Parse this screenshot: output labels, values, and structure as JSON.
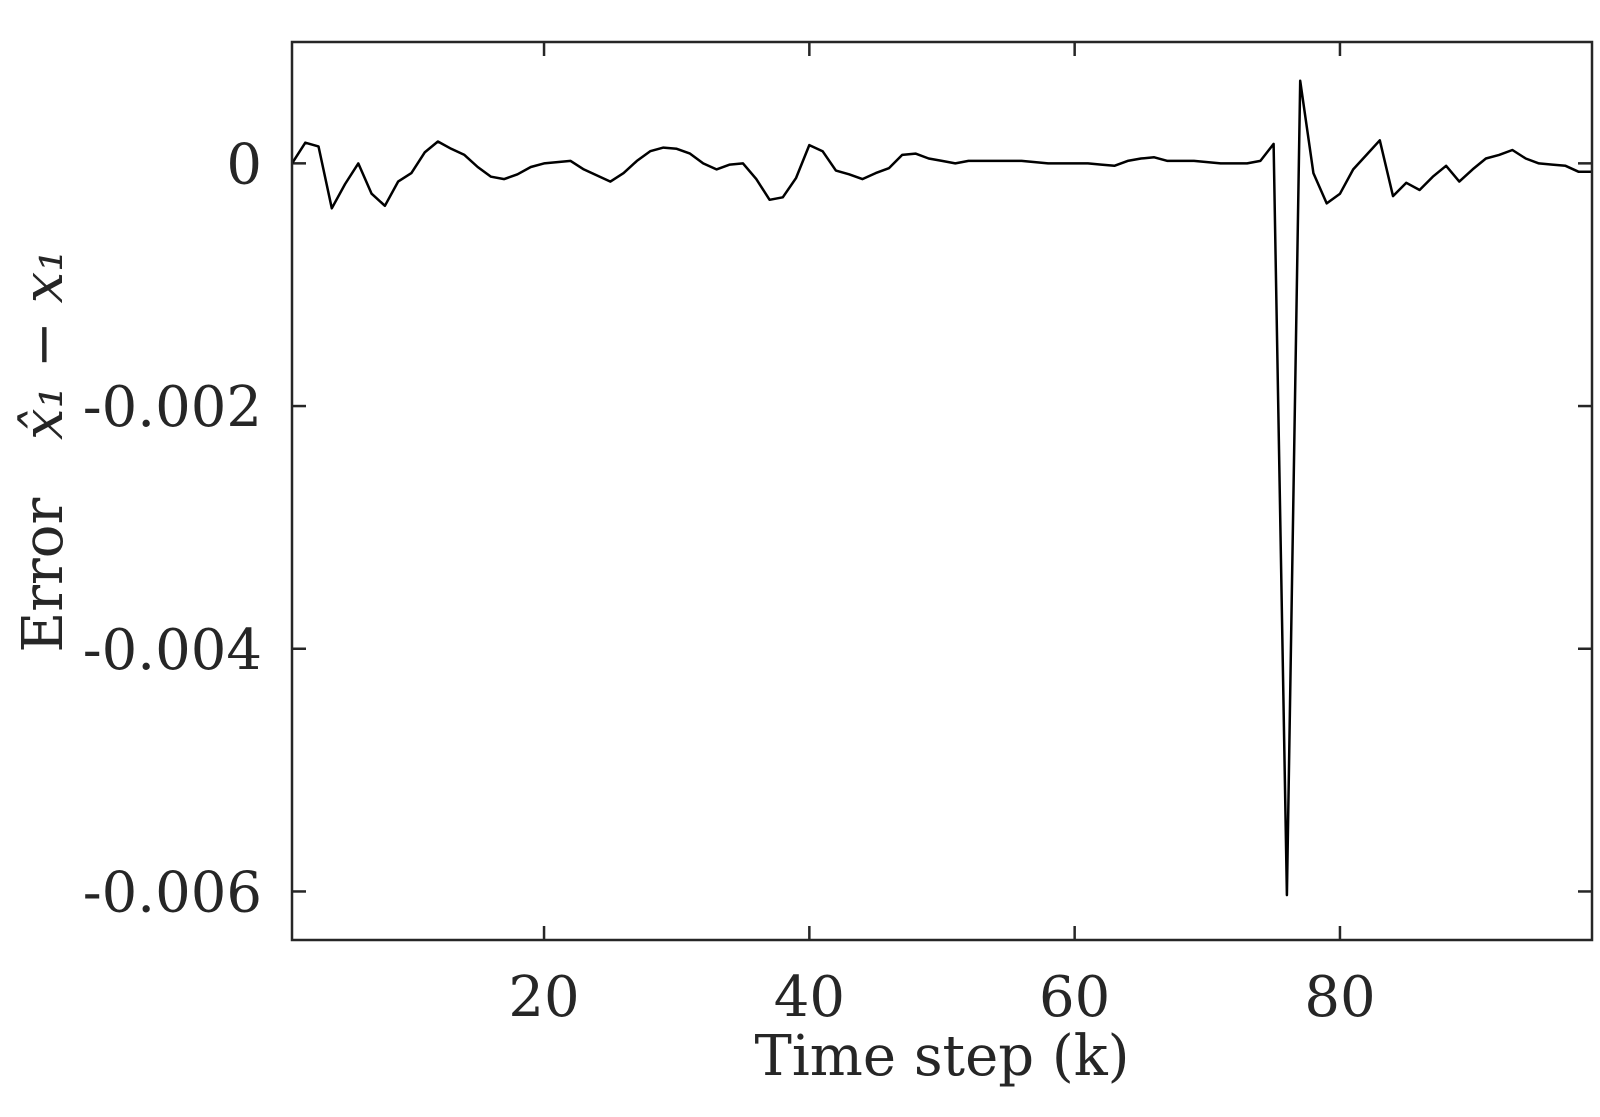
{
  "chart_data": {
    "type": "line",
    "xlabel": "Time step (k)",
    "ylabel_prefix": "Error",
    "ylabel_math": "x̂₁ − x₁",
    "xlim": [
      1,
      99
    ],
    "ylim": [
      -0.0064,
      0.001
    ],
    "xticks": [
      20,
      40,
      60,
      80
    ],
    "xtick_labels": [
      "20",
      "40",
      "60",
      "80"
    ],
    "yticks": [
      0,
      -0.002,
      -0.004,
      -0.006
    ],
    "ytick_labels": [
      "0",
      "-0.002",
      "-0.004",
      "-0.006"
    ],
    "grid": false,
    "line_color": "#000000",
    "series": [
      {
        "x": [
          1,
          2,
          3,
          4,
          5,
          6,
          7,
          8,
          9,
          10,
          11,
          12,
          13,
          14,
          15,
          16,
          17,
          18,
          19,
          20,
          21,
          22,
          23,
          24,
          25,
          26,
          27,
          28,
          29,
          30,
          31,
          32,
          33,
          34,
          35,
          36,
          37,
          38,
          39,
          40,
          41,
          42,
          43,
          44,
          45,
          46,
          47,
          48,
          49,
          50,
          51,
          52,
          53,
          54,
          55,
          56,
          57,
          58,
          59,
          60,
          61,
          62,
          63,
          64,
          65,
          66,
          67,
          68,
          69,
          70,
          71,
          72,
          73,
          74,
          75,
          76,
          77,
          78,
          79,
          80,
          81,
          82,
          83,
          84,
          85,
          86,
          87,
          88,
          89,
          90,
          91,
          92,
          93,
          94,
          95,
          96,
          97,
          98,
          99
        ],
        "y": [
          0.0,
          0.00017,
          0.00014,
          -0.00037,
          -0.00017,
          0.0,
          -0.00025,
          -0.00035,
          -0.00015,
          -8e-05,
          9e-05,
          0.00018,
          0.00012,
          7e-05,
          -3e-05,
          -0.00011,
          -0.00013,
          -9e-05,
          -3e-05,
          0.0,
          1e-05,
          2e-05,
          -5e-05,
          -0.0001,
          -0.00015,
          -8e-05,
          2e-05,
          0.0001,
          0.00013,
          0.00012,
          8e-05,
          0.0,
          -5e-05,
          -1e-05,
          0.0,
          -0.00013,
          -0.0003,
          -0.00028,
          -0.00012,
          0.00015,
          0.0001,
          -6e-05,
          -9e-05,
          -0.00013,
          -8e-05,
          -4e-05,
          7e-05,
          8e-05,
          4e-05,
          2e-05,
          0.0,
          2e-05,
          2e-05,
          2e-05,
          2e-05,
          2e-05,
          1e-05,
          0.0,
          0.0,
          0.0,
          0.0,
          -1e-05,
          -2e-05,
          2e-05,
          4e-05,
          5e-05,
          2e-05,
          2e-05,
          2e-05,
          1e-05,
          0.0,
          0.0,
          0.0,
          2e-05,
          0.00016,
          -0.00603,
          0.00068,
          -8e-05,
          -0.00033,
          -0.00025,
          -5e-05,
          7e-05,
          0.00019,
          -0.00027,
          -0.00016,
          -0.00022,
          -0.00011,
          -2e-05,
          -0.00015,
          -5e-05,
          4e-05,
          7e-05,
          0.00011,
          4e-05,
          0.0,
          -1e-05,
          -2e-05,
          -7e-05,
          -7e-05
        ]
      }
    ]
  }
}
